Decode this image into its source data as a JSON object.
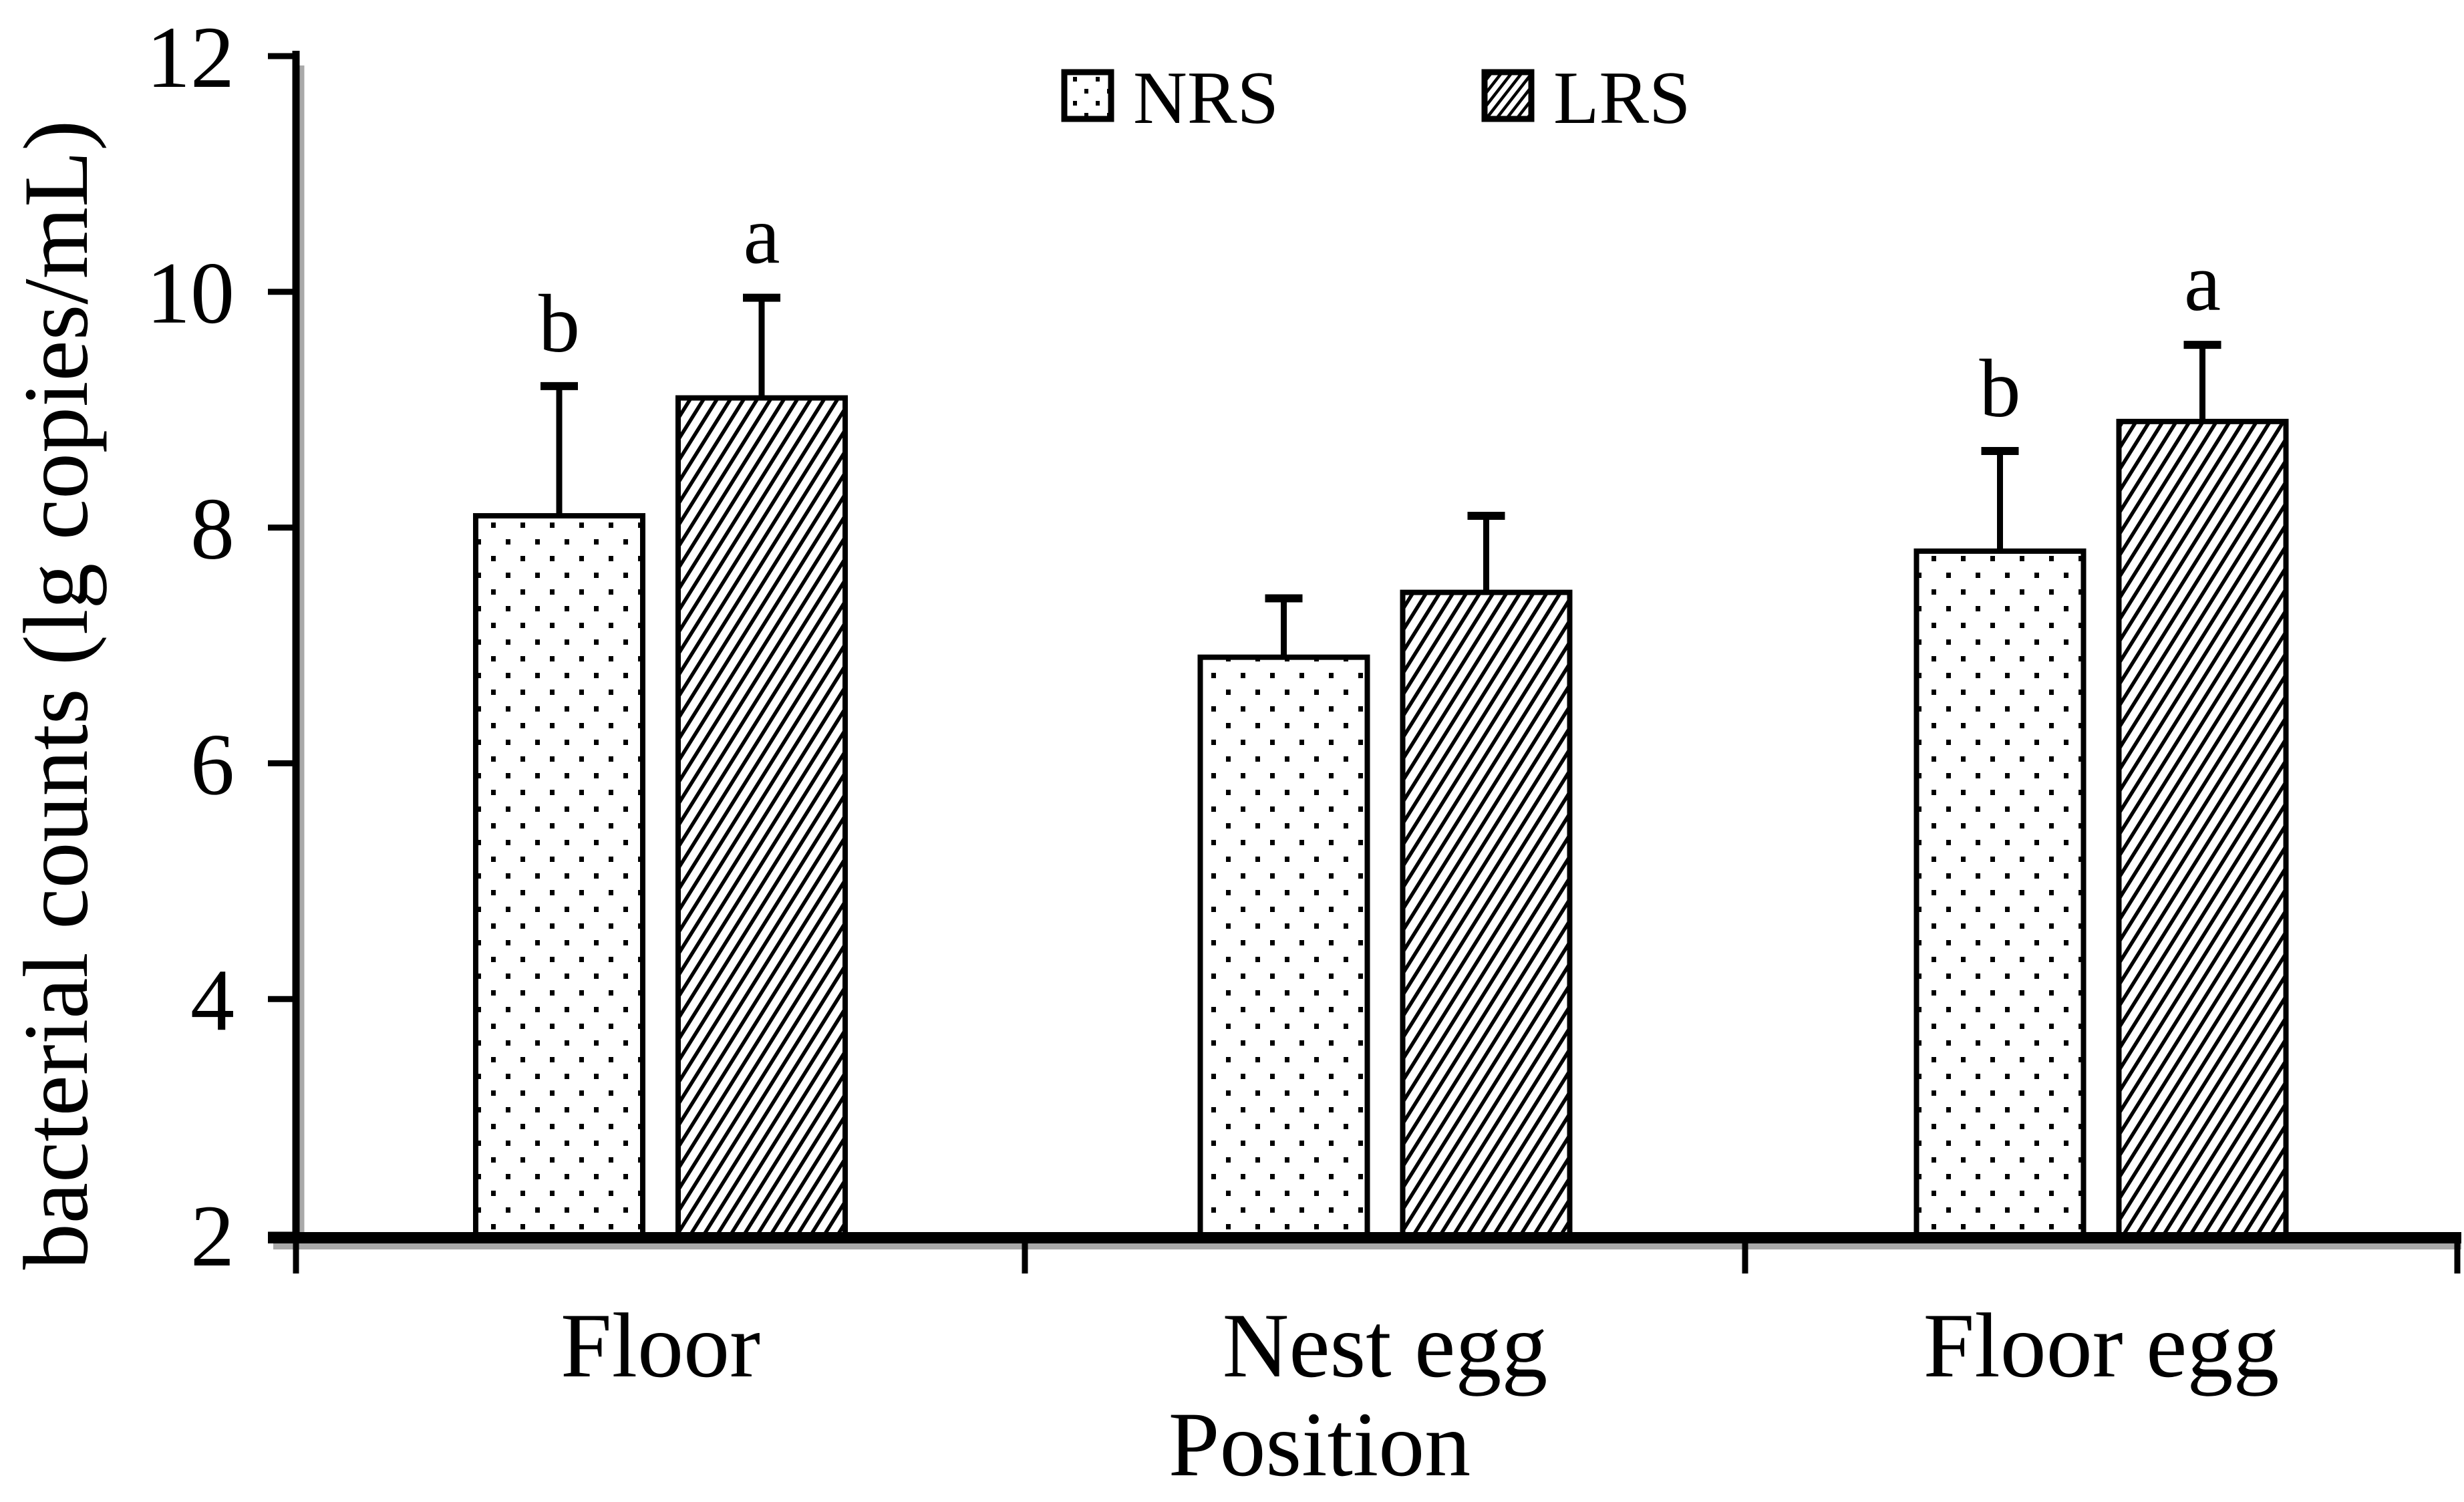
{
  "chart_data": {
    "type": "bar",
    "title": "",
    "xlabel": "Position",
    "ylabel": "bacterial counts (lg copies/mL)",
    "categories": [
      "Floor",
      "Nest egg",
      "Floor egg"
    ],
    "series": [
      {
        "name": "NRS",
        "fill_pattern": "dots",
        "values": [
          8.1,
          6.9,
          7.8
        ],
        "errors_upper": [
          1.1,
          0.5,
          0.85
        ],
        "sig_letters": [
          "b",
          "",
          "b"
        ]
      },
      {
        "name": "LRS",
        "fill_pattern": "hatch",
        "values": [
          9.1,
          7.45,
          8.9
        ],
        "errors_upper": [
          0.85,
          0.65,
          0.65
        ],
        "sig_letters": [
          "a",
          "",
          "a"
        ]
      }
    ],
    "y_axis": {
      "min": 2,
      "max": 12,
      "tick_step": 2,
      "ticks": [
        2,
        4,
        6,
        8,
        10,
        12
      ]
    },
    "x_axis": {
      "label": "Position"
    },
    "legend": {
      "position": "top-center",
      "items": [
        "NRS",
        "LRS"
      ]
    },
    "grid": false,
    "error_bars": "upper-only",
    "colors": {
      "ink": "#000000",
      "background": "#ffffff",
      "shadow": "#a9a9a9"
    }
  }
}
